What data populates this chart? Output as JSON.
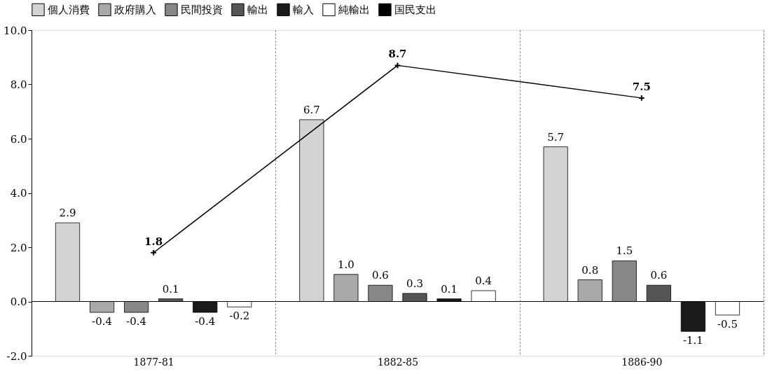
{
  "chart_data": {
    "type": "bar",
    "categories": [
      "1877-81",
      "1882-85",
      "1886-90"
    ],
    "series": [
      {
        "name": "個人消費",
        "color": "#d3d3d3",
        "values": [
          2.9,
          6.7,
          5.7
        ],
        "value_labels": [
          "2.9",
          "6.7",
          "5.7"
        ]
      },
      {
        "name": "政府購入",
        "color": "#a9a9a9",
        "values": [
          -0.4,
          1.0,
          0.8
        ],
        "value_labels": [
          "-0.4",
          "1.0",
          "0.8"
        ]
      },
      {
        "name": "民間投資",
        "color": "#878787",
        "values": [
          -0.4,
          0.6,
          1.5
        ],
        "value_labels": [
          "-0.4",
          "0.6",
          "1.5"
        ]
      },
      {
        "name": "輸出",
        "color": "#555555",
        "values": [
          0.1,
          0.3,
          0.6
        ],
        "value_labels": [
          "0.1",
          "0.3",
          "0.6"
        ]
      },
      {
        "name": "輸入",
        "color": "#1a1a1a",
        "values": [
          -0.4,
          0.1,
          -1.1
        ],
        "value_labels": [
          "-0.4",
          "0.1",
          "-1.1"
        ]
      },
      {
        "name": "純輸出",
        "color": "#ffffff",
        "values": [
          -0.2,
          0.4,
          -0.5
        ],
        "value_labels": [
          "-0.2",
          "0.4",
          "-0.5"
        ]
      },
      {
        "name": "国民支出",
        "type": "line",
        "color": "#000000",
        "marker": "cross",
        "values": [
          1.8,
          8.7,
          7.5
        ],
        "value_labels": [
          "1.8",
          "8.7",
          "7.5"
        ]
      }
    ],
    "ylim": [
      -2,
      10
    ],
    "yticks": [
      {
        "value": -2,
        "label": "-2.0"
      },
      {
        "value": 0,
        "label": "0.0"
      },
      {
        "value": 2,
        "label": "2.0"
      },
      {
        "value": 4,
        "label": "4.0"
      },
      {
        "value": 6,
        "label": "6.0"
      },
      {
        "value": 8,
        "label": "8.0"
      },
      {
        "value": 10,
        "label": "10.0"
      }
    ],
    "ref_lines": [
      {
        "axis": "y",
        "value": 0,
        "color": "#000000"
      }
    ],
    "grid": "x",
    "legend": "top"
  }
}
